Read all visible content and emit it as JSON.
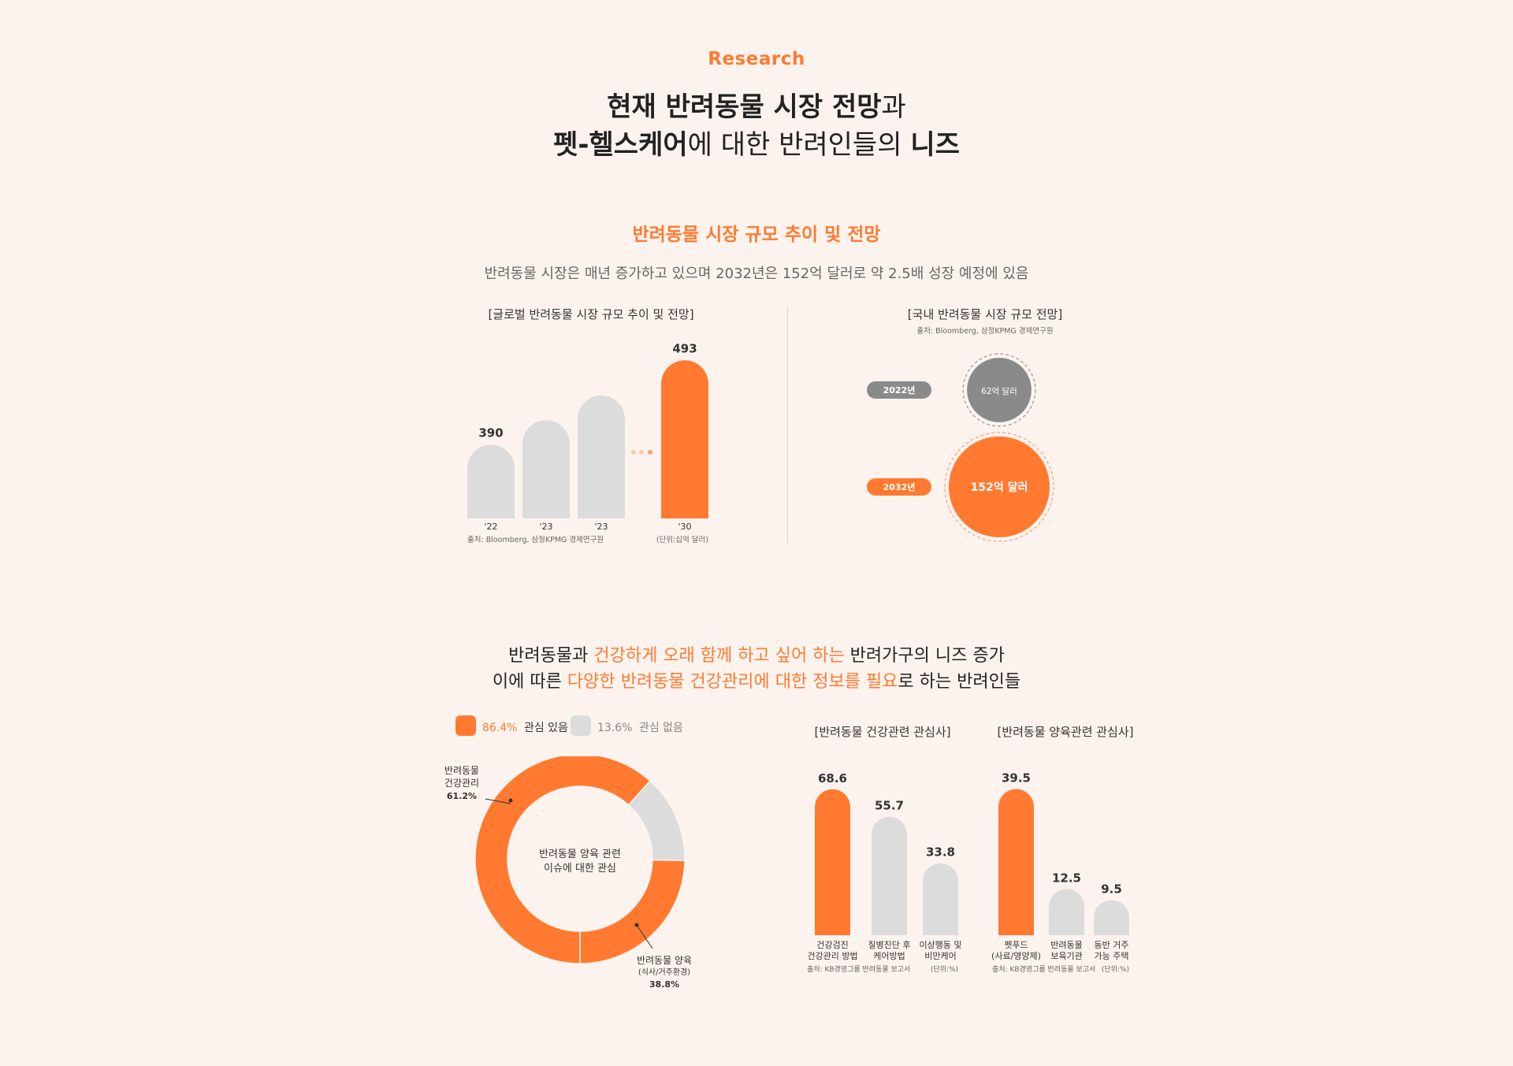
{
  "header": {
    "eyebrow": "Research",
    "title_line1_bold": "현재 반려동물 시장 전망",
    "title_line1_rest": "과",
    "title_line2_bold": "펫-헬스케어",
    "title_line2_rest": "에 대한 반려인들의 ",
    "title_line2_bold2": "니즈"
  },
  "section1": {
    "title": "반려동물 시장 규모 추이 및 전망",
    "subtitle": "반려동물 시장은 매년 증가하고 있으며 2032년은 152억 달러로 약 2.5배 성장 예정에 있음"
  },
  "section2": {
    "line1_a": "반려동물과 ",
    "line1_b": "건강하게 오래 함께 하고 싶어 하는",
    "line1_c": " 반려가구의 니즈 증가",
    "line2_a": "이에 따른 ",
    "line2_b": "다양한 반려동물 건강관리에 대한 정보를 필요",
    "line2_c": "로 하는 반려인들"
  },
  "colors": {
    "accent": "#ff7a30",
    "gray_bar": "#dcdcdc",
    "dark_gray": "#8a8a8a",
    "background": "#fdf3ee"
  },
  "chart_data": [
    {
      "type": "bar",
      "title": "[글로벌 반려동물 시장 규모 추이 및 전망]",
      "categories": [
        "'22",
        "'23",
        "'23",
        "'30"
      ],
      "values": [
        390,
        420,
        450,
        493
      ],
      "data_labels": [
        "390",
        "",
        "",
        "493"
      ],
      "highlight_index": 3,
      "source": "출처: Bloomberg, 삼정KPMG 경제연구원",
      "unit": "(단위:십억 달러)"
    },
    {
      "type": "bubble",
      "title": "[국내 반려동물 시장 규모 전망]",
      "source": "출처: Bloomberg, 삼정KPMG 경제연구원",
      "items": [
        {
          "year": "2022년",
          "label": "62억 달러",
          "value": 62
        },
        {
          "year": "2032년",
          "label": "152억 달러",
          "value": 152
        }
      ]
    },
    {
      "type": "pie",
      "center_label_line1": "반려동물 양육 관련",
      "center_label_line2": "이슈에 대한 관심",
      "legend": [
        {
          "pct": "86.4%",
          "name": "관심 있음",
          "value": 86.4
        },
        {
          "pct": "13.6%",
          "name": "관심 없음",
          "value": 13.6
        }
      ],
      "slices": [
        {
          "name_line1": "반려동물",
          "name_line2": "건강관리",
          "pct": "61.2%",
          "value": 61.2
        },
        {
          "name_line1": "반려동물 양육",
          "name_line2": "(식사/거주환경)",
          "pct": "38.8%",
          "value": 38.8
        }
      ]
    },
    {
      "type": "bar",
      "title": "[반려동물 건강관련 관심사]",
      "categories": [
        [
          "건강검진",
          "건강관리 방법"
        ],
        [
          "질병진단 후",
          "케어방법"
        ],
        [
          "이상행동 및",
          "비만케어"
        ]
      ],
      "values": [
        68.6,
        55.7,
        33.8
      ],
      "data_labels": [
        "68.6",
        "55.7",
        "33.8"
      ],
      "highlight_index": 0,
      "source": "출처: KB경영그룹 반려동물 보고서",
      "unit": "(단위:%)"
    },
    {
      "type": "bar",
      "title": "[반려동물 양육관련 관심사]",
      "categories": [
        [
          "펫푸드",
          "(사료/영양제)"
        ],
        [
          "반려동물",
          "보육기관"
        ],
        [
          "동반 거주",
          "가능 주택"
        ]
      ],
      "values": [
        39.5,
        12.5,
        9.5
      ],
      "data_labels": [
        "39.5",
        "12.5",
        "9.5"
      ],
      "highlight_index": 0,
      "source": "출처: KB경영그룹 반려동물 보고서",
      "unit": "(단위:%)"
    }
  ]
}
